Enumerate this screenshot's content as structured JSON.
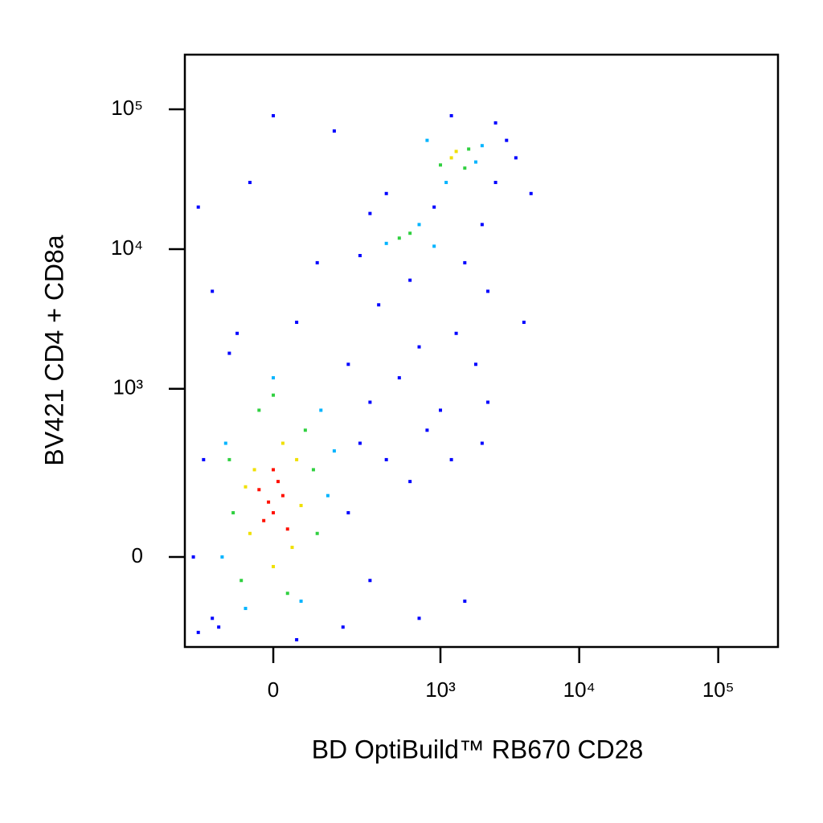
{
  "chart_data": {
    "type": "scatter",
    "scale": "biexponential",
    "x_label": "BD OptiBuild™ RB670 CD28",
    "y_label": "BV421 CD4 + CD8a",
    "xlim": [
      -258,
      269000
    ],
    "ylim": [
      -263,
      246000
    ],
    "xticks": [
      0,
      {
        "value": 1000,
        "label": "10³"
      },
      {
        "value": 10000,
        "label": "10⁴"
      },
      {
        "value": 100000,
        "label": "10⁵"
      }
    ],
    "yticks": [
      0,
      {
        "value": 1000,
        "label": "10³"
      },
      {
        "value": 10000,
        "label": "10⁴"
      },
      {
        "value": 100000,
        "label": "10⁵"
      }
    ],
    "series": [
      {
        "color": "#0000ff",
        "x": [
          -200,
          -180,
          -150,
          200,
          250,
          300,
          400,
          600,
          800,
          1000,
          1200,
          500,
          700,
          -80,
          50,
          -150,
          100,
          -200,
          -50,
          0,
          150,
          300,
          250,
          400,
          900,
          1500,
          2000,
          2500,
          3000,
          3500,
          4500,
          4000,
          2200,
          1800,
          2000,
          1500,
          700,
          300,
          -220,
          -100,
          200,
          350,
          600,
          1200,
          2500,
          -130,
          180,
          50,
          1300,
          2200
        ],
        "values": [
          -200,
          300,
          -150,
          100,
          400,
          800,
          300,
          200,
          500,
          700,
          300,
          1200,
          2000,
          2500,
          3000,
          5000,
          8000,
          20000,
          30000,
          90000,
          70000,
          18000,
          9000,
          25000,
          20000,
          8000,
          15000,
          30000,
          60000,
          45000,
          25000,
          3000,
          5000,
          1500,
          400,
          -100,
          -150,
          -50,
          0,
          1800,
          1500,
          4000,
          6000,
          90000,
          80000,
          -180,
          -180,
          -230,
          2500,
          800
        ]
      },
      {
        "color": "#00b4ff",
        "x": [
          -120,
          130,
          -110,
          110,
          0,
          -60,
          60,
          150,
          400,
          700,
          900,
          800,
          2000,
          1100,
          1800
        ],
        "values": [
          0,
          150,
          400,
          700,
          1200,
          -120,
          -100,
          350,
          11000,
          15000,
          10500,
          60000,
          55000,
          30000,
          42000
        ]
      },
      {
        "color": "#30d040",
        "x": [
          -90,
          90,
          -70,
          70,
          -30,
          30,
          100,
          -100,
          0,
          1000,
          1600,
          500,
          600,
          1500
        ],
        "values": [
          100,
          250,
          -50,
          500,
          700,
          -80,
          50,
          300,
          900,
          40000,
          52000,
          12000,
          13000,
          38000
        ]
      },
      {
        "color": "#f0e000",
        "x": [
          50,
          -50,
          -40,
          60,
          20,
          -60,
          40,
          0,
          1200,
          1300
        ],
        "values": [
          300,
          50,
          250,
          120,
          400,
          180,
          20,
          -20,
          45000,
          50000
        ]
      },
      {
        "color": "#ff1000",
        "x": [
          0,
          20,
          -20,
          10,
          -10,
          30,
          0,
          -30
        ],
        "values": [
          100,
          150,
          80,
          200,
          130,
          60,
          250,
          170
        ]
      }
    ]
  }
}
